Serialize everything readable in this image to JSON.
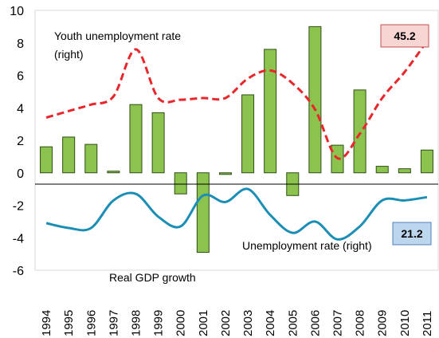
{
  "chart_data": {
    "type": "bar",
    "categories": [
      "1994",
      "1995",
      "1996",
      "1997",
      "1998",
      "1999",
      "2000",
      "2001",
      "2002",
      "2003",
      "2004",
      "2005",
      "2006",
      "2007",
      "2008",
      "2009",
      "2010",
      "2011"
    ],
    "ylim": [
      -6,
      10
    ],
    "yticks": [
      "10",
      "8",
      "6",
      "4",
      "2",
      "0",
      "-2",
      "-4",
      "-6"
    ],
    "grid": false,
    "series": [
      {
        "name": "Real GDP growth",
        "kind": "bar",
        "axis": "left",
        "color": "#8cc34f",
        "values": [
          1.6,
          2.2,
          1.75,
          0.1,
          4.2,
          3.7,
          -1.3,
          -4.9,
          -0.1,
          4.8,
          7.6,
          -1.4,
          9.0,
          1.7,
          5.1,
          0.4,
          0.25,
          1.4
        ]
      },
      {
        "name": "Youth unemployment rate (right)",
        "kind": "line",
        "axis": "left",
        "color": "#e8262b",
        "dashed": true,
        "values": [
          3.4,
          3.8,
          4.2,
          4.7,
          7.6,
          4.6,
          4.5,
          4.6,
          4.6,
          5.8,
          6.3,
          5.5,
          3.9,
          0.9,
          2.4,
          4.6,
          6.2,
          8.1
        ]
      },
      {
        "name": "Unemployment rate (right)",
        "kind": "line",
        "axis": "left",
        "color": "#1a8eb5",
        "dashed": false,
        "values": [
          -3.1,
          -3.4,
          -3.4,
          -1.7,
          -1.3,
          -2.7,
          -3.3,
          -1.4,
          -1.8,
          -1.0,
          -2.6,
          -3.7,
          -3.0,
          -4.1,
          -3.3,
          -1.7,
          -1.7,
          -1.5
        ]
      }
    ],
    "annotations": {
      "youth_line1": "Youth unemployment  rate",
      "youth_line2": "(right)",
      "gdp_label": "Real GDP growth",
      "unemp_label": "Unemployment  rate  (right)",
      "youth_badge": "45.2",
      "unemp_badge": "21.2"
    },
    "badge_colors": {
      "youth": "#f6d5d3",
      "unemp": "#bcd7ed"
    }
  }
}
